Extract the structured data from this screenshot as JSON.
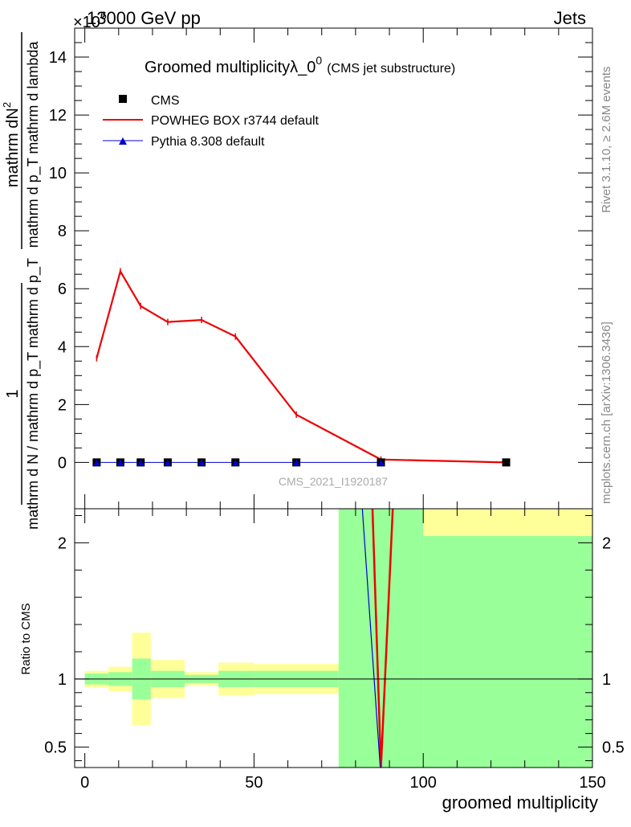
{
  "header": {
    "left": "13000 GeV pp",
    "right": "Jets",
    "exponent": "×10",
    "exponent_power": "6"
  },
  "side_labels": {
    "rivet": "Rivet 3.1.10, ≥ 2.6M events",
    "mcplots": "mcplots.cern.ch [arXiv:1306.3436]"
  },
  "chart_data": [
    {
      "type": "line",
      "title_main": "Groomed multiplicityλ_0",
      "title_sup": "0",
      "title_sub": "(CMS jet substructure)",
      "watermark": "CMS_2021_I1920187",
      "ylabel_numerator": "mathrm dN",
      "ylabel_numerator_sup": "2",
      "ylabel_denominator": "mathrm d p_T mathrm d lambda",
      "ylabel_prefactor_num": "1",
      "ylabel_prefactor_den": "mathrm d N / mathrm d p_T mathrm d p_T",
      "ylim": [
        -1.6,
        15
      ],
      "yticks": [
        0,
        2,
        4,
        6,
        8,
        10,
        12,
        14
      ],
      "xlim": [
        -3,
        150
      ],
      "legend": [
        {
          "name": "CMS",
          "color": "#000000",
          "marker": "square"
        },
        {
          "name": "POWHEG BOX r3744 default",
          "color": "#ee0000",
          "marker": "line"
        },
        {
          "name": "Pythia 8.308 default",
          "color": "#0000cc",
          "marker": "triangle"
        }
      ],
      "series": [
        {
          "name": "CMS",
          "x": [
            3.5,
            10.5,
            16.5,
            24.5,
            34.5,
            44.5,
            62.5,
            87.5,
            124.5
          ],
          "y": [
            0,
            0,
            0,
            0,
            0,
            0,
            0,
            0,
            0
          ]
        },
        {
          "name": "POWHEG BOX r3744 default",
          "x": [
            3.5,
            10.5,
            16.5,
            24.5,
            34.5,
            44.5,
            62.5,
            87.5,
            124.5
          ],
          "y": [
            3.6,
            6.6,
            5.4,
            4.85,
            4.92,
            4.35,
            1.65,
            0.1,
            0.0
          ]
        },
        {
          "name": "Pythia 8.308 default",
          "x": [
            3.5,
            10.5,
            16.5,
            24.5,
            34.5,
            44.5,
            62.5,
            87.5
          ],
          "y": [
            0,
            0,
            0,
            0,
            0,
            0,
            0,
            0
          ]
        }
      ]
    },
    {
      "type": "area",
      "ylabel": "Ratio to CMS",
      "xlabel": "groomed multiplicity",
      "xlim": [
        -3,
        150
      ],
      "xticks": [
        0,
        50,
        100,
        150
      ],
      "ylim": [
        0.35,
        2.25
      ],
      "yticks": [
        0.5,
        1,
        2
      ],
      "bands": [
        {
          "x0": 0,
          "x1": 7,
          "green": [
            0.96,
            1.04
          ],
          "yellow": [
            0.94,
            1.06
          ]
        },
        {
          "x0": 7,
          "x1": 14,
          "green": [
            0.95,
            1.05
          ],
          "yellow": [
            0.91,
            1.09
          ]
        },
        {
          "x0": 14,
          "x1": 19.5,
          "green": [
            0.85,
            1.15
          ],
          "yellow": [
            0.66,
            1.34
          ]
        },
        {
          "x0": 19.5,
          "x1": 29.5,
          "green": [
            0.94,
            1.06
          ],
          "yellow": [
            0.86,
            1.14
          ]
        },
        {
          "x0": 29.5,
          "x1": 39.5,
          "green": [
            0.97,
            1.03
          ],
          "yellow": [
            0.95,
            1.05
          ]
        },
        {
          "x0": 39.5,
          "x1": 50,
          "green": [
            0.94,
            1.06
          ],
          "yellow": [
            0.88,
            1.12
          ]
        },
        {
          "x0": 50,
          "x1": 75,
          "green": [
            0.94,
            1.06
          ],
          "yellow": [
            0.89,
            1.11
          ]
        },
        {
          "x0": 75,
          "x1": 100,
          "green": [
            0.35,
            2.25
          ],
          "yellow": [
            0.35,
            2.25
          ]
        },
        {
          "x0": 100,
          "x1": 150,
          "green": [
            0.35,
            2.05
          ],
          "yellow": [
            0.35,
            2.25
          ]
        }
      ],
      "series": [
        {
          "name": "POWHEG BOX r3744 default",
          "x": [
            85,
            87.5,
            91
          ],
          "y": [
            2.25,
            0.35,
            2.25
          ]
        },
        {
          "name": "Pythia 8.308 default",
          "x": [
            82,
            87.3
          ],
          "y": [
            2.25,
            0.35
          ]
        }
      ]
    }
  ]
}
